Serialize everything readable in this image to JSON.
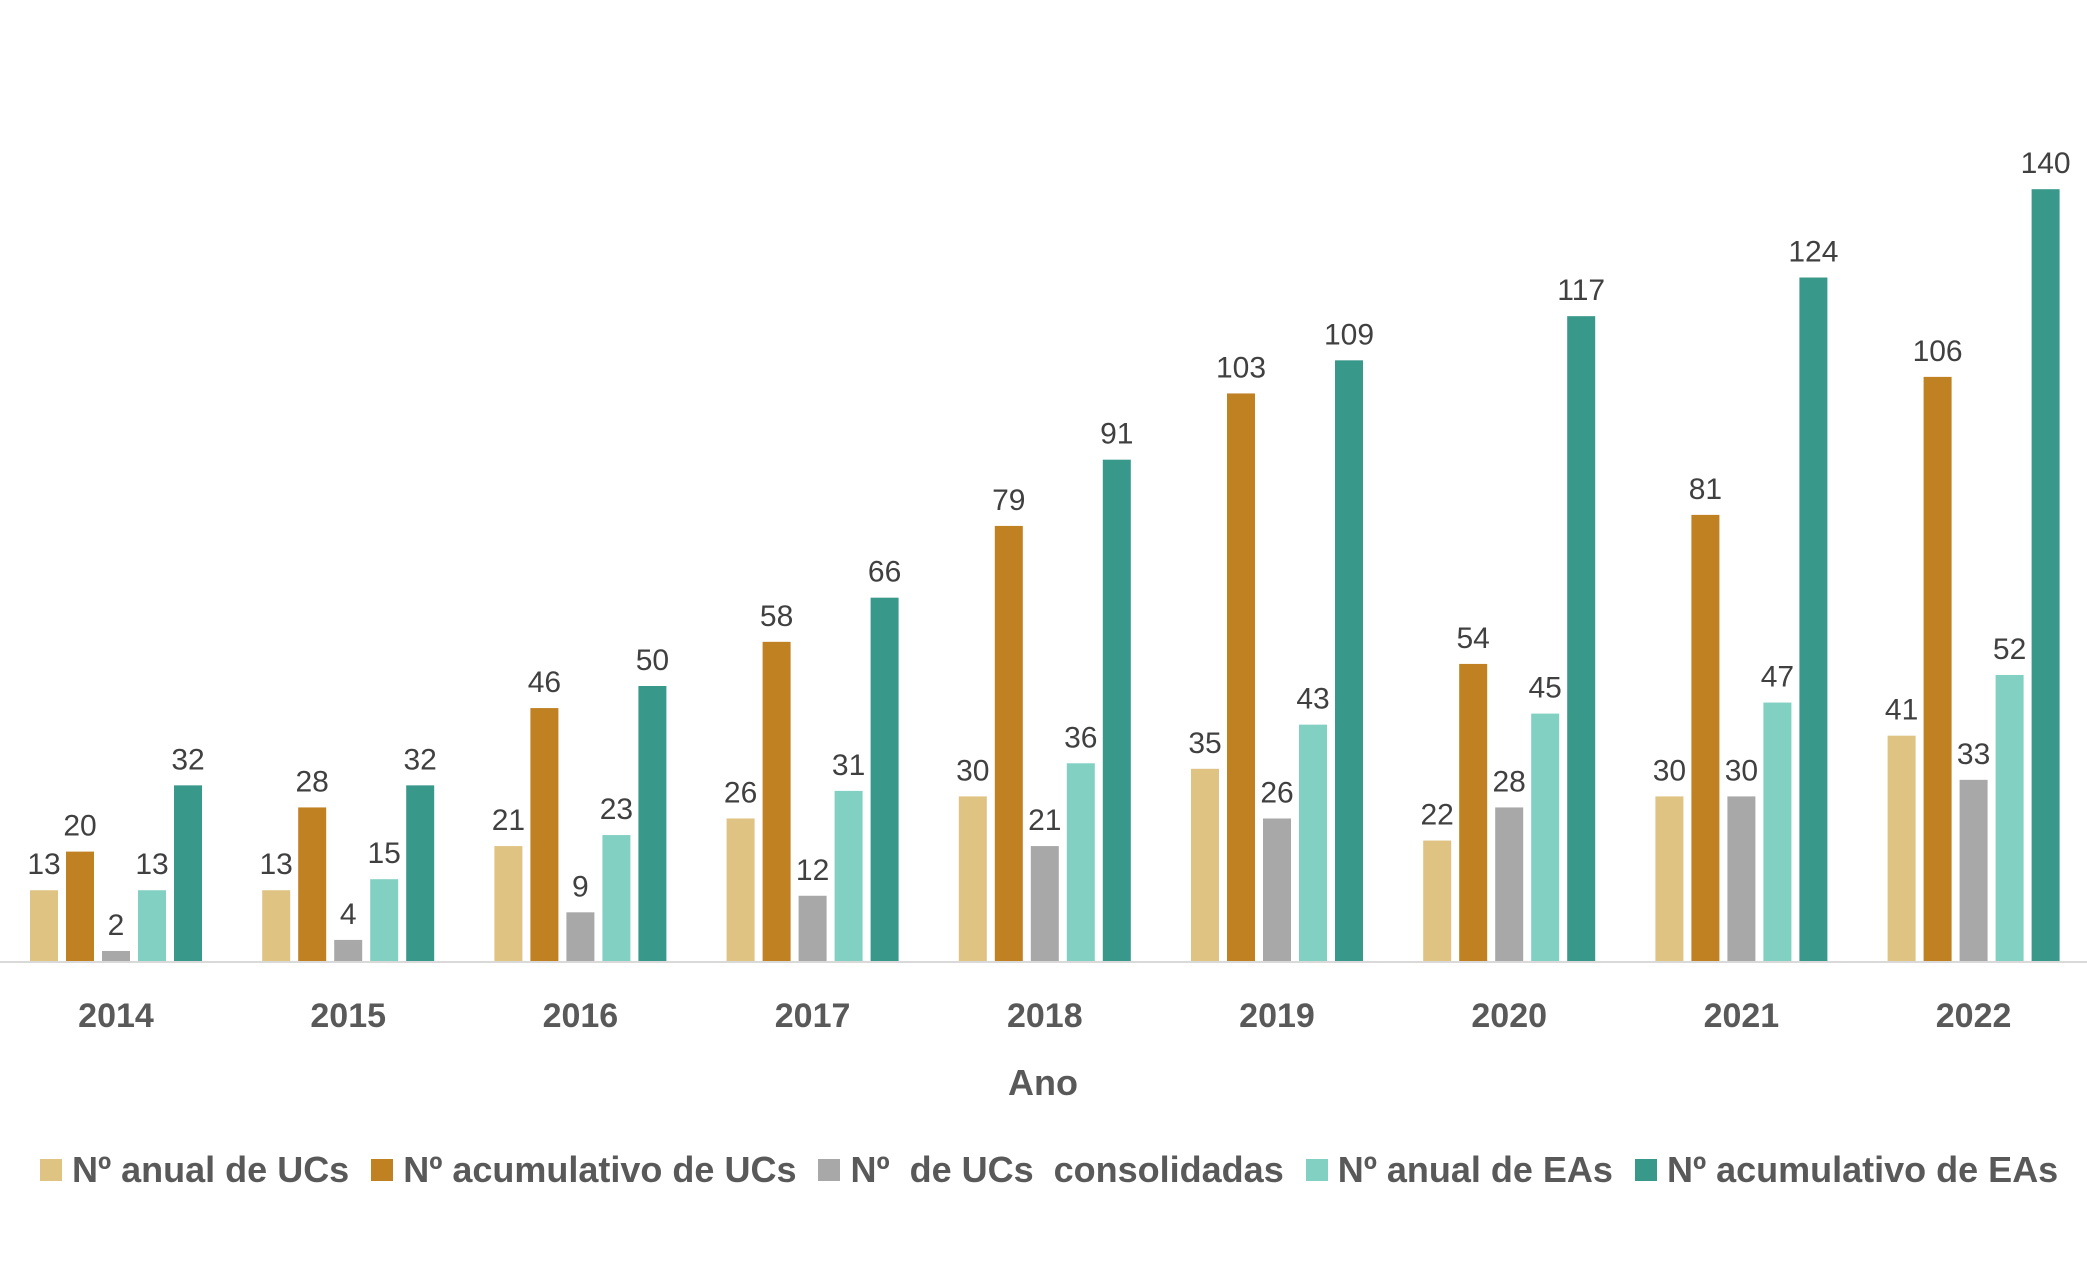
{
  "chart_data": {
    "type": "bar",
    "xlabel": "Ano",
    "ylabel": "",
    "ylim": [
      0,
      150
    ],
    "grid": false,
    "legend_position": "bottom",
    "categories": [
      "2014",
      "2015",
      "2016",
      "2017",
      "2018",
      "2019",
      "2020",
      "2021",
      "2022"
    ],
    "series": [
      {
        "name": "Nº anual de UCs",
        "color": "#DFC383",
        "values": [
          13,
          13,
          21,
          26,
          30,
          35,
          22,
          30,
          41
        ]
      },
      {
        "name": "Nº acumulativo de UCs",
        "color": "#BF8122",
        "values": [
          20,
          28,
          46,
          58,
          79,
          103,
          54,
          81,
          106
        ]
      },
      {
        "name": "Nº  de UCs  consolidadas",
        "color": "#A8A8A8",
        "values": [
          2,
          4,
          9,
          12,
          21,
          26,
          28,
          30,
          33
        ]
      },
      {
        "name": "Nº anual de EAs",
        "color": "#82D0C2",
        "values": [
          13,
          15,
          23,
          31,
          36,
          43,
          45,
          47,
          52
        ]
      },
      {
        "name": "Nº acumulativo de EAs",
        "color": "#38988A",
        "values": [
          32,
          32,
          50,
          66,
          91,
          109,
          117,
          124,
          140
        ]
      }
    ]
  }
}
